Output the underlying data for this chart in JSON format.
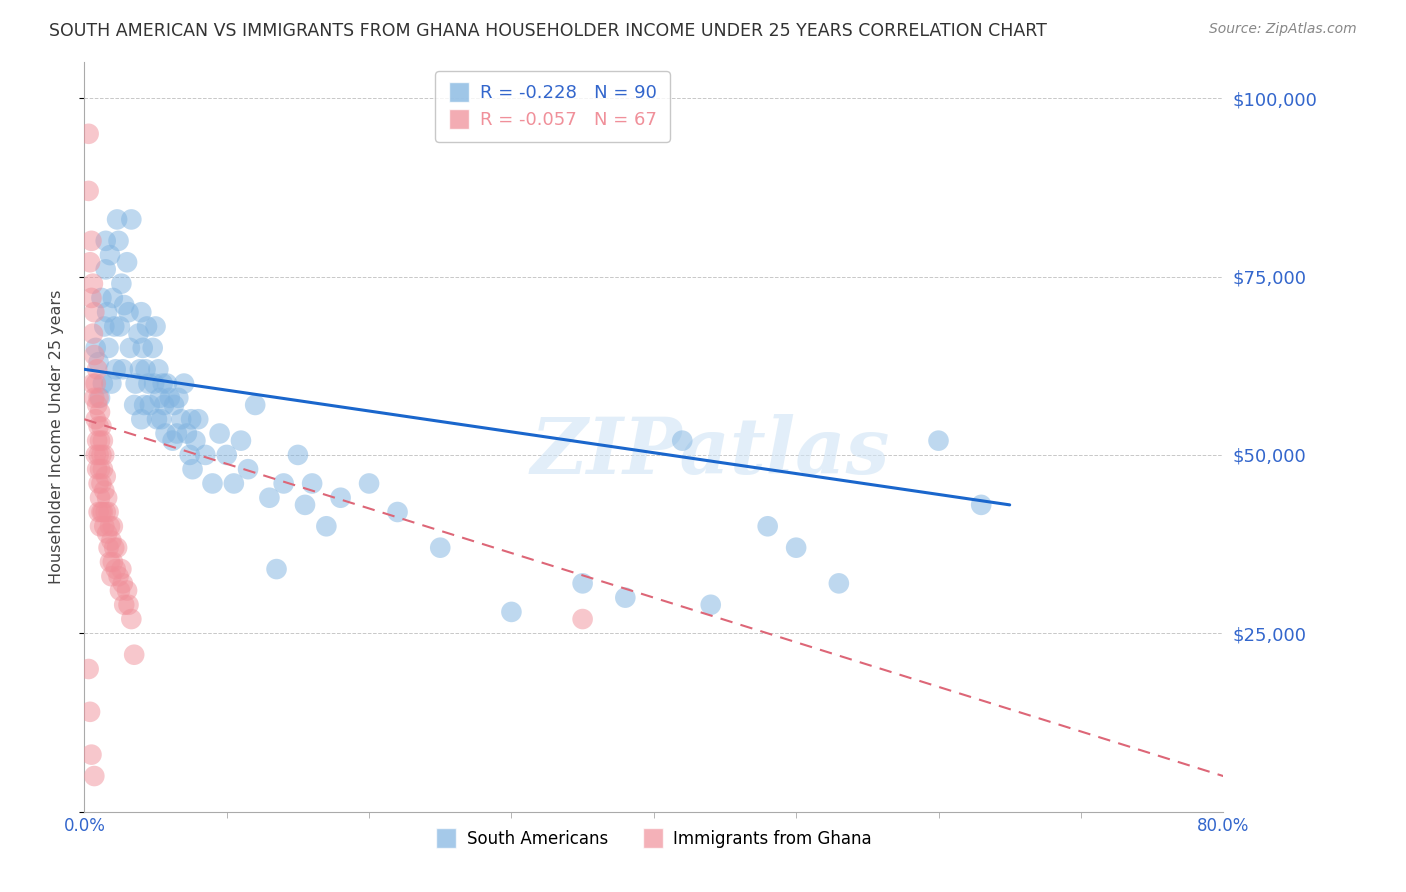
{
  "title": "SOUTH AMERICAN VS IMMIGRANTS FROM GHANA HOUSEHOLDER INCOME UNDER 25 YEARS CORRELATION CHART",
  "source": "Source: ZipAtlas.com",
  "ylabel": "Householder Income Under 25 years",
  "right_yticks": [
    25000,
    50000,
    75000,
    100000
  ],
  "right_yticklabels": [
    "$25,000",
    "$50,000",
    "$75,000",
    "$100,000"
  ],
  "blue_color": "#7fb3e0",
  "pink_color": "#f0909a",
  "trend_blue": "#1a66cc",
  "trend_pink": "#dd6677",
  "watermark": "ZIPatlas",
  "blue_R": -0.228,
  "blue_N": 90,
  "pink_R": -0.057,
  "pink_N": 67,
  "xlim": [
    0.0,
    0.8
  ],
  "ylim": [
    0,
    105000
  ],
  "blue_points": [
    [
      0.008,
      65000
    ],
    [
      0.01,
      63000
    ],
    [
      0.011,
      58000
    ],
    [
      0.012,
      72000
    ],
    [
      0.013,
      60000
    ],
    [
      0.014,
      68000
    ],
    [
      0.015,
      80000
    ],
    [
      0.015,
      76000
    ],
    [
      0.016,
      70000
    ],
    [
      0.017,
      65000
    ],
    [
      0.018,
      78000
    ],
    [
      0.019,
      60000
    ],
    [
      0.02,
      72000
    ],
    [
      0.021,
      68000
    ],
    [
      0.022,
      62000
    ],
    [
      0.023,
      83000
    ],
    [
      0.024,
      80000
    ],
    [
      0.025,
      68000
    ],
    [
      0.026,
      74000
    ],
    [
      0.027,
      62000
    ],
    [
      0.028,
      71000
    ],
    [
      0.03,
      77000
    ],
    [
      0.031,
      70000
    ],
    [
      0.032,
      65000
    ],
    [
      0.033,
      83000
    ],
    [
      0.035,
      57000
    ],
    [
      0.036,
      60000
    ],
    [
      0.038,
      67000
    ],
    [
      0.039,
      62000
    ],
    [
      0.04,
      55000
    ],
    [
      0.04,
      70000
    ],
    [
      0.041,
      65000
    ],
    [
      0.042,
      57000
    ],
    [
      0.043,
      62000
    ],
    [
      0.044,
      68000
    ],
    [
      0.045,
      60000
    ],
    [
      0.046,
      57000
    ],
    [
      0.048,
      65000
    ],
    [
      0.049,
      60000
    ],
    [
      0.05,
      68000
    ],
    [
      0.051,
      55000
    ],
    [
      0.052,
      62000
    ],
    [
      0.053,
      58000
    ],
    [
      0.054,
      55000
    ],
    [
      0.055,
      60000
    ],
    [
      0.056,
      57000
    ],
    [
      0.057,
      53000
    ],
    [
      0.058,
      60000
    ],
    [
      0.06,
      58000
    ],
    [
      0.062,
      52000
    ],
    [
      0.063,
      57000
    ],
    [
      0.065,
      53000
    ],
    [
      0.066,
      58000
    ],
    [
      0.068,
      55000
    ],
    [
      0.07,
      60000
    ],
    [
      0.072,
      53000
    ],
    [
      0.074,
      50000
    ],
    [
      0.075,
      55000
    ],
    [
      0.076,
      48000
    ],
    [
      0.078,
      52000
    ],
    [
      0.08,
      55000
    ],
    [
      0.085,
      50000
    ],
    [
      0.09,
      46000
    ],
    [
      0.095,
      53000
    ],
    [
      0.1,
      50000
    ],
    [
      0.105,
      46000
    ],
    [
      0.11,
      52000
    ],
    [
      0.115,
      48000
    ],
    [
      0.12,
      57000
    ],
    [
      0.13,
      44000
    ],
    [
      0.135,
      34000
    ],
    [
      0.14,
      46000
    ],
    [
      0.15,
      50000
    ],
    [
      0.155,
      43000
    ],
    [
      0.16,
      46000
    ],
    [
      0.17,
      40000
    ],
    [
      0.18,
      44000
    ],
    [
      0.2,
      46000
    ],
    [
      0.22,
      42000
    ],
    [
      0.25,
      37000
    ],
    [
      0.3,
      28000
    ],
    [
      0.35,
      32000
    ],
    [
      0.38,
      30000
    ],
    [
      0.42,
      52000
    ],
    [
      0.44,
      29000
    ],
    [
      0.48,
      40000
    ],
    [
      0.5,
      37000
    ],
    [
      0.53,
      32000
    ],
    [
      0.6,
      52000
    ],
    [
      0.63,
      43000
    ]
  ],
  "pink_points": [
    [
      0.003,
      95000
    ],
    [
      0.003,
      87000
    ],
    [
      0.004,
      77000
    ],
    [
      0.005,
      80000
    ],
    [
      0.005,
      72000
    ],
    [
      0.006,
      74000
    ],
    [
      0.006,
      67000
    ],
    [
      0.006,
      60000
    ],
    [
      0.007,
      70000
    ],
    [
      0.007,
      64000
    ],
    [
      0.007,
      58000
    ],
    [
      0.008,
      60000
    ],
    [
      0.008,
      55000
    ],
    [
      0.008,
      50000
    ],
    [
      0.009,
      62000
    ],
    [
      0.009,
      57000
    ],
    [
      0.009,
      52000
    ],
    [
      0.009,
      48000
    ],
    [
      0.01,
      58000
    ],
    [
      0.01,
      54000
    ],
    [
      0.01,
      50000
    ],
    [
      0.01,
      46000
    ],
    [
      0.01,
      42000
    ],
    [
      0.011,
      56000
    ],
    [
      0.011,
      52000
    ],
    [
      0.011,
      48000
    ],
    [
      0.011,
      44000
    ],
    [
      0.011,
      40000
    ],
    [
      0.012,
      54000
    ],
    [
      0.012,
      50000
    ],
    [
      0.012,
      46000
    ],
    [
      0.012,
      42000
    ],
    [
      0.013,
      52000
    ],
    [
      0.013,
      48000
    ],
    [
      0.013,
      42000
    ],
    [
      0.014,
      50000
    ],
    [
      0.014,
      45000
    ],
    [
      0.014,
      40000
    ],
    [
      0.015,
      47000
    ],
    [
      0.015,
      42000
    ],
    [
      0.016,
      44000
    ],
    [
      0.016,
      39000
    ],
    [
      0.017,
      42000
    ],
    [
      0.017,
      37000
    ],
    [
      0.018,
      40000
    ],
    [
      0.018,
      35000
    ],
    [
      0.019,
      38000
    ],
    [
      0.019,
      33000
    ],
    [
      0.02,
      40000
    ],
    [
      0.02,
      35000
    ],
    [
      0.021,
      37000
    ],
    [
      0.022,
      34000
    ],
    [
      0.023,
      37000
    ],
    [
      0.024,
      33000
    ],
    [
      0.025,
      31000
    ],
    [
      0.026,
      34000
    ],
    [
      0.027,
      32000
    ],
    [
      0.028,
      29000
    ],
    [
      0.03,
      31000
    ],
    [
      0.031,
      29000
    ],
    [
      0.033,
      27000
    ],
    [
      0.035,
      22000
    ],
    [
      0.004,
      14000
    ],
    [
      0.005,
      8000
    ],
    [
      0.007,
      5000
    ],
    [
      0.003,
      20000
    ],
    [
      0.35,
      27000
    ]
  ],
  "blue_trend_x": [
    0.0,
    0.65
  ],
  "blue_trend_y": [
    62000,
    43000
  ],
  "pink_trend_x": [
    0.0,
    0.8
  ],
  "pink_trend_y": [
    55000,
    5000
  ],
  "grid_color": "#c8c8c8",
  "title_color": "#333333",
  "axis_color": "#3366cc",
  "background_color": "#ffffff",
  "legend_blue_label": "R = -0.228   N = 90",
  "legend_pink_label": "R = -0.057   N = 67",
  "bottom_label1": "South Americans",
  "bottom_label2": "Immigrants from Ghana"
}
